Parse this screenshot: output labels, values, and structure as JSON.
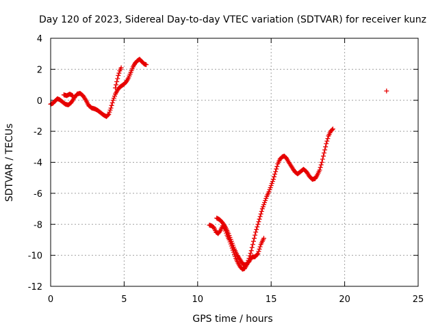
{
  "chart_data": {
    "type": "scatter",
    "title": "Day 120 of 2023, Sidereal Day-to-day VTEC variation (SDTVAR) for receiver kunz",
    "xlabel": "GPS time / hours",
    "ylabel": "SDTVAR / TECUs",
    "xlim": [
      0,
      25
    ],
    "ylim": [
      -12,
      4
    ],
    "xticks": [
      0,
      5,
      10,
      15,
      20,
      25
    ],
    "yticks": [
      -12,
      -10,
      -8,
      -6,
      -4,
      -2,
      0,
      2,
      4
    ],
    "grid": true,
    "marker": "plus",
    "color": "#e60000",
    "series": [
      {
        "segments": [
          [
            [
              0.0,
              -0.25
            ],
            [
              0.15,
              -0.2
            ],
            [
              0.3,
              -0.05
            ],
            [
              0.45,
              0.1
            ],
            [
              0.6,
              0.05
            ],
            [
              0.8,
              -0.1
            ],
            [
              1.0,
              -0.25
            ],
            [
              1.2,
              -0.3
            ],
            [
              1.4,
              -0.15
            ],
            [
              1.6,
              0.15
            ],
            [
              1.8,
              0.4
            ],
            [
              2.0,
              0.45
            ],
            [
              2.2,
              0.3
            ],
            [
              2.4,
              0.0
            ],
            [
              2.6,
              -0.35
            ],
            [
              2.8,
              -0.5
            ],
            [
              3.0,
              -0.55
            ],
            [
              3.2,
              -0.65
            ],
            [
              3.4,
              -0.8
            ],
            [
              3.6,
              -0.95
            ],
            [
              3.8,
              -1.05
            ],
            [
              3.95,
              -0.9
            ],
            [
              4.1,
              -0.5
            ],
            [
              4.25,
              0.0
            ],
            [
              4.4,
              0.4
            ],
            [
              4.55,
              0.65
            ],
            [
              4.7,
              0.85
            ],
            [
              4.85,
              0.95
            ],
            [
              5.0,
              1.05
            ],
            [
              5.15,
              1.2
            ],
            [
              5.3,
              1.45
            ],
            [
              5.45,
              1.8
            ],
            [
              5.6,
              2.15
            ],
            [
              5.75,
              2.4
            ],
            [
              5.9,
              2.55
            ],
            [
              6.05,
              2.65
            ],
            [
              6.2,
              2.5
            ],
            [
              6.35,
              2.35
            ],
            [
              6.5,
              2.3
            ]
          ],
          [
            [
              0.9,
              0.35
            ],
            [
              1.1,
              0.3
            ],
            [
              1.3,
              0.4
            ],
            [
              1.5,
              0.3
            ]
          ],
          [
            [
              4.4,
              0.8
            ],
            [
              4.5,
              1.2
            ],
            [
              4.6,
              1.6
            ],
            [
              4.7,
              1.9
            ],
            [
              4.8,
              2.1
            ]
          ],
          [
            [
              10.8,
              -8.05
            ],
            [
              10.95,
              -8.1
            ],
            [
              11.1,
              -8.2
            ],
            [
              11.25,
              -8.5
            ],
            [
              11.4,
              -8.6
            ],
            [
              11.55,
              -8.4
            ],
            [
              11.7,
              -8.1
            ],
            [
              11.85,
              -8.3
            ],
            [
              12.0,
              -8.7
            ],
            [
              12.15,
              -9.0
            ],
            [
              12.3,
              -9.4
            ],
            [
              12.45,
              -9.8
            ],
            [
              12.6,
              -10.2
            ],
            [
              12.75,
              -10.5
            ],
            [
              12.9,
              -10.75
            ],
            [
              13.05,
              -10.9
            ],
            [
              13.2,
              -10.85
            ],
            [
              13.35,
              -10.6
            ],
            [
              13.5,
              -10.2
            ],
            [
              13.65,
              -9.7
            ],
            [
              13.8,
              -9.1
            ],
            [
              13.95,
              -8.5
            ],
            [
              14.1,
              -8.0
            ],
            [
              14.25,
              -7.5
            ],
            [
              14.4,
              -7.0
            ],
            [
              14.55,
              -6.6
            ],
            [
              14.7,
              -6.2
            ],
            [
              14.85,
              -5.9
            ],
            [
              15.0,
              -5.5
            ],
            [
              15.15,
              -5.1
            ],
            [
              15.3,
              -4.6
            ],
            [
              15.45,
              -4.1
            ],
            [
              15.6,
              -3.8
            ],
            [
              15.75,
              -3.65
            ],
            [
              15.9,
              -3.6
            ],
            [
              16.05,
              -3.75
            ],
            [
              16.2,
              -4.0
            ],
            [
              16.4,
              -4.3
            ],
            [
              16.6,
              -4.6
            ],
            [
              16.8,
              -4.75
            ],
            [
              17.0,
              -4.6
            ],
            [
              17.2,
              -4.45
            ],
            [
              17.4,
              -4.6
            ],
            [
              17.6,
              -4.9
            ],
            [
              17.8,
              -5.1
            ],
            [
              18.0,
              -5.05
            ],
            [
              18.15,
              -4.8
            ],
            [
              18.3,
              -4.5
            ],
            [
              18.45,
              -4.0
            ],
            [
              18.6,
              -3.4
            ],
            [
              18.75,
              -2.8
            ],
            [
              18.9,
              -2.3
            ],
            [
              19.05,
              -2.0
            ],
            [
              19.2,
              -1.85
            ]
          ],
          [
            [
              11.3,
              -7.6
            ],
            [
              11.5,
              -7.7
            ],
            [
              11.7,
              -7.9
            ],
            [
              11.9,
              -8.2
            ],
            [
              12.1,
              -8.6
            ],
            [
              12.3,
              -9.1
            ],
            [
              12.5,
              -9.6
            ],
            [
              12.7,
              -10.0
            ],
            [
              12.9,
              -10.3
            ],
            [
              13.1,
              -10.6
            ],
            [
              13.3,
              -10.6
            ],
            [
              13.5,
              -10.4
            ],
            [
              13.7,
              -10.1
            ],
            [
              13.9,
              -10.1
            ],
            [
              14.1,
              -9.9
            ],
            [
              14.3,
              -9.3
            ],
            [
              14.5,
              -8.9
            ]
          ],
          [
            [
              22.85,
              0.6
            ]
          ]
        ]
      }
    ]
  }
}
